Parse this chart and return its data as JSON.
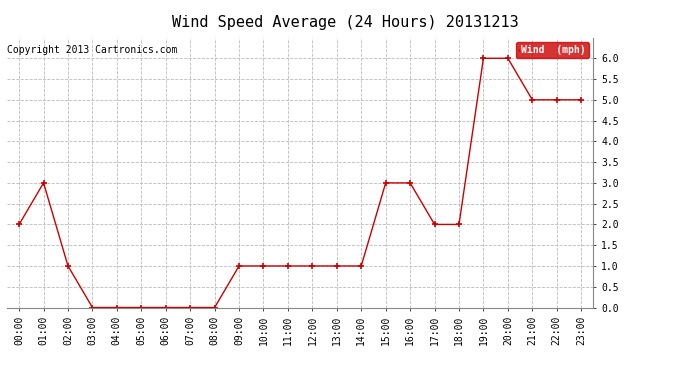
{
  "title": "Wind Speed Average (24 Hours) 20131213",
  "copyright": "Copyright 2013 Cartronics.com",
  "x_labels": [
    "00:00",
    "01:00",
    "02:00",
    "03:00",
    "04:00",
    "05:00",
    "06:00",
    "07:00",
    "08:00",
    "09:00",
    "10:00",
    "11:00",
    "12:00",
    "13:00",
    "14:00",
    "15:00",
    "16:00",
    "17:00",
    "18:00",
    "19:00",
    "20:00",
    "21:00",
    "22:00",
    "23:00"
  ],
  "y_values": [
    2.0,
    3.0,
    1.0,
    0.0,
    0.0,
    0.0,
    0.0,
    0.0,
    0.0,
    1.0,
    1.0,
    1.0,
    1.0,
    1.0,
    1.0,
    3.0,
    3.0,
    2.0,
    2.0,
    6.0,
    6.0,
    5.0,
    5.0,
    5.0
  ],
  "line_color": "#cc0000",
  "marker": "+",
  "marker_size": 5,
  "marker_edge_width": 1.2,
  "line_width": 1.0,
  "ylim": [
    0.0,
    6.5
  ],
  "yticks": [
    0.0,
    0.5,
    1.0,
    1.5,
    2.0,
    2.5,
    3.0,
    3.5,
    4.0,
    4.5,
    5.0,
    5.5,
    6.0
  ],
  "legend_label": "Wind  (mph)",
  "legend_bg": "#cc0000",
  "legend_text_color": "#ffffff",
  "background_color": "#ffffff",
  "grid_color": "#bbbbbb",
  "title_fontsize": 11,
  "axis_fontsize": 7,
  "copyright_fontsize": 7,
  "legend_fontsize": 7
}
